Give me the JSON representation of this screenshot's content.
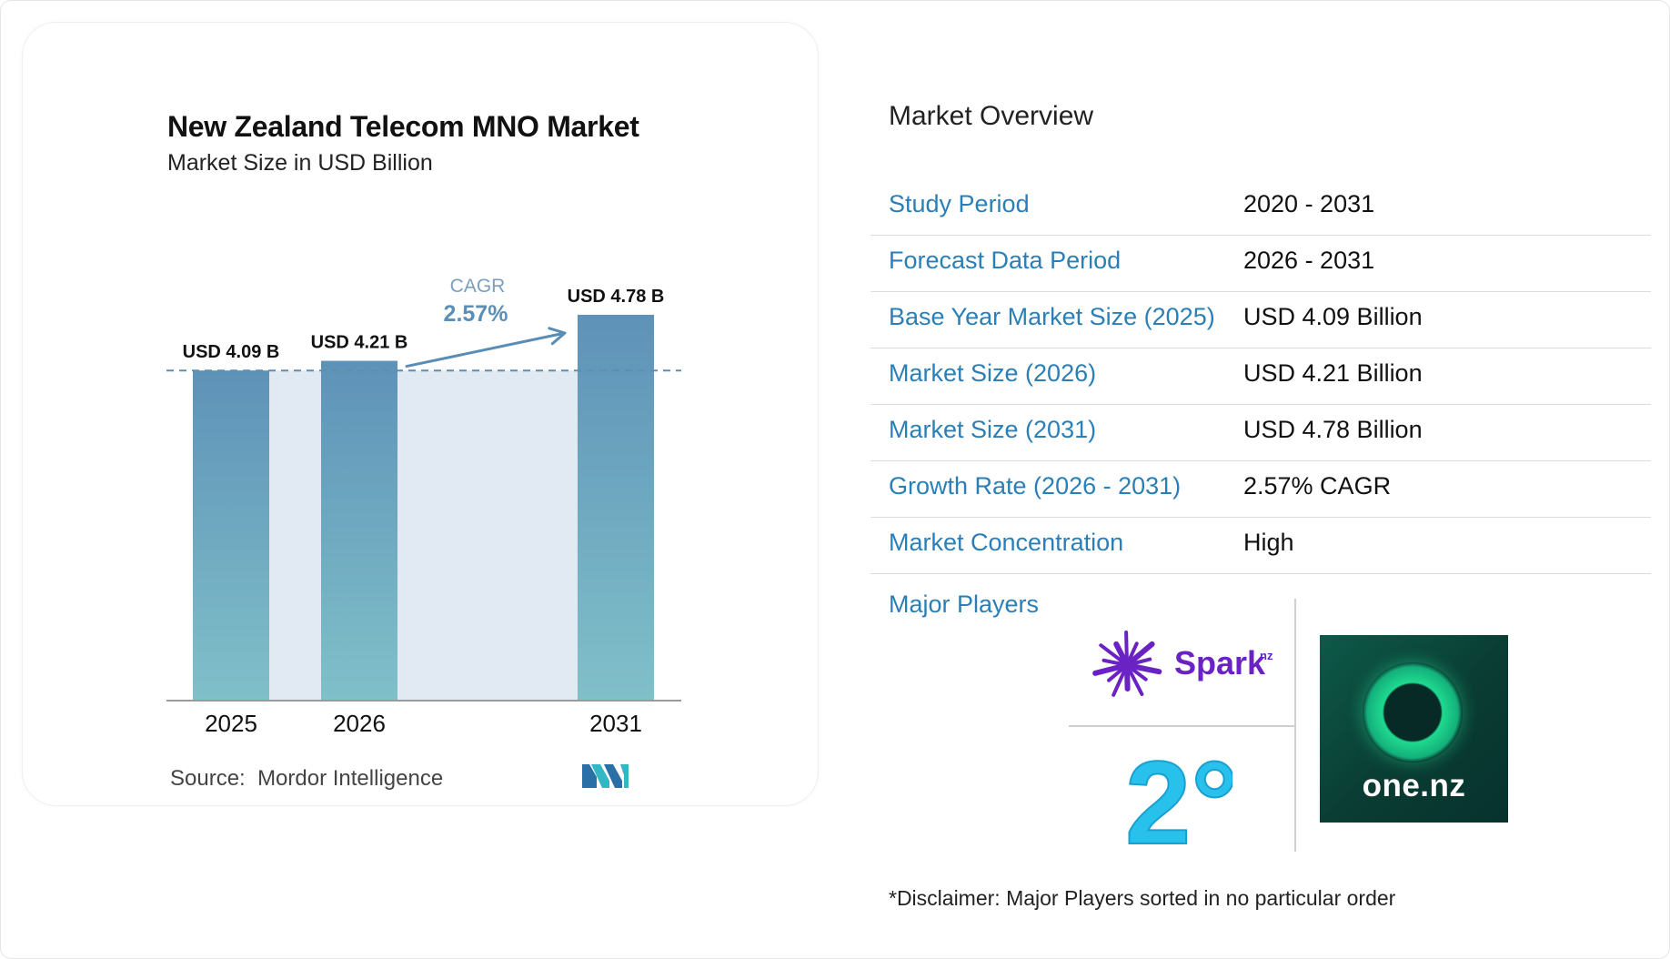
{
  "chart_data": {
    "type": "bar",
    "title": "New Zealand Telecom MNO Market",
    "subtitle": "Market Size in USD Billion",
    "categories": [
      "2025",
      "2026",
      "2031"
    ],
    "values": [
      4.09,
      4.21,
      4.78
    ],
    "data_labels": [
      "USD 4.09 B",
      "USD 4.21 B",
      "USD 4.78 B"
    ],
    "ylim": [
      0,
      4.78
    ],
    "reference_line": 4.09,
    "annotation": {
      "label": "CAGR",
      "value": "2.57%"
    },
    "grid": false,
    "legend": "none",
    "colors": {
      "bar_top": "#5e92b8",
      "bar_bottom": "#80c0c9",
      "band": "#e1e9f2",
      "dashed": "#5e8fb0",
      "arrow": "#5a8db5",
      "axis": "#9a9a9a"
    }
  },
  "source": {
    "label": "Source:",
    "name": "Mordor Intelligence"
  },
  "overview": {
    "title": "Market Overview",
    "rows": [
      {
        "key": "Study Period",
        "value": "2020 - 2031"
      },
      {
        "key": "Forecast Data Period",
        "value": "2026 - 2031"
      },
      {
        "key": "Base Year Market Size (2025)",
        "value": "USD 4.09 Billion"
      },
      {
        "key": "Market Size (2026)",
        "value": "USD 4.21 Billion"
      },
      {
        "key": "Market Size (2031)",
        "value": "USD 4.78 Billion"
      },
      {
        "key": "Growth Rate (2026 - 2031)",
        "value": "2.57% CAGR"
      },
      {
        "key": "Market Concentration",
        "value": "High"
      }
    ]
  },
  "players": {
    "label": "Major Players",
    "logos": [
      {
        "name": "spark-nz-logo",
        "text": "Spark",
        "suffix": "nz",
        "color": "#6a22c4"
      },
      {
        "name": "2degrees-logo",
        "text": "2°",
        "color": "#27c1ec"
      },
      {
        "name": "one-nz-logo",
        "text": "one.nz",
        "color": "#1fd98f"
      }
    ]
  },
  "disclaimer": "*Disclaimer: Major Players sorted in no particular order"
}
